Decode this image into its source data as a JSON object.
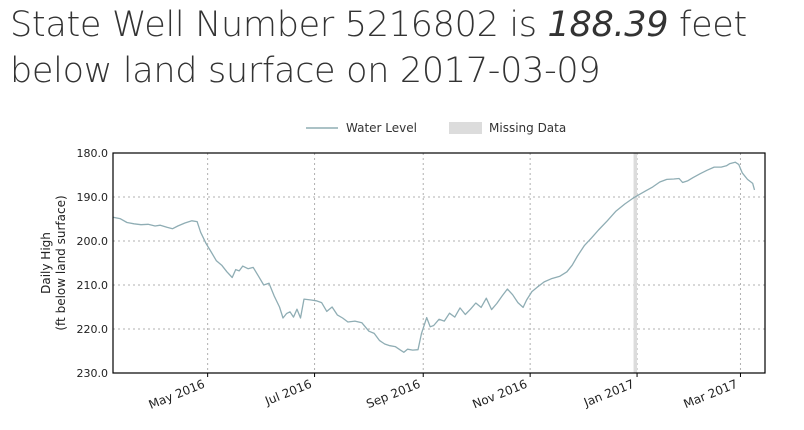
{
  "header": {
    "prefix": "State Well Number 5216802 is ",
    "value": "188.39",
    "suffix_line1": " feet",
    "line2": "below land surface on 2017-03-09"
  },
  "colors": {
    "series": "#8fadb4",
    "missing": "#dcdcdc",
    "grid": "#b0b0b0",
    "text": "#333333"
  },
  "chart_data": {
    "type": "line",
    "xlabel": "",
    "ylabel": "Daily High",
    "ylabel2": "(ft below land surface)",
    "ylim": [
      180,
      230
    ],
    "y_inverted": true,
    "y_ticks": [
      180,
      190,
      200,
      210,
      220,
      230
    ],
    "y_tick_labels": [
      "180.0",
      "190.0",
      "200.0",
      "210.0",
      "220.0",
      "230.0"
    ],
    "xlim": [
      "2016-03-08",
      "2017-03-15"
    ],
    "x_ticks": [
      "2016-05-01",
      "2016-07-01",
      "2016-09-01",
      "2016-11-01",
      "2017-01-01",
      "2017-03-01"
    ],
    "x_tick_labels": [
      "May 2016",
      "Jul 2016",
      "Sep 2016",
      "Nov 2016",
      "Jan 2017",
      "Mar 2017"
    ],
    "grid": true,
    "legend_position": "top-center",
    "legend": [
      {
        "label": "Water Level",
        "kind": "line"
      },
      {
        "label": "Missing Data",
        "kind": "box"
      }
    ],
    "missing_ranges": [
      [
        "2016-12-30",
        "2017-01-01"
      ]
    ],
    "series": [
      {
        "name": "Water Level",
        "points": [
          [
            "2016-03-08",
            194.6
          ],
          [
            "2016-03-12",
            194.9
          ],
          [
            "2016-03-16",
            195.8
          ],
          [
            "2016-03-20",
            196.1
          ],
          [
            "2016-03-24",
            196.3
          ],
          [
            "2016-03-28",
            196.2
          ],
          [
            "2016-04-01",
            196.6
          ],
          [
            "2016-04-04",
            196.4
          ],
          [
            "2016-04-08",
            196.9
          ],
          [
            "2016-04-11",
            197.2
          ],
          [
            "2016-04-14",
            196.6
          ],
          [
            "2016-04-18",
            195.9
          ],
          [
            "2016-04-22",
            195.4
          ],
          [
            "2016-04-25",
            195.6
          ],
          [
            "2016-04-27",
            198.0
          ],
          [
            "2016-04-30",
            200.5
          ],
          [
            "2016-05-03",
            202.5
          ],
          [
            "2016-05-06",
            204.5
          ],
          [
            "2016-05-09",
            205.5
          ],
          [
            "2016-05-12",
            207.0
          ],
          [
            "2016-05-15",
            208.3
          ],
          [
            "2016-05-17",
            206.5
          ],
          [
            "2016-05-19",
            206.8
          ],
          [
            "2016-05-21",
            205.7
          ],
          [
            "2016-05-24",
            206.3
          ],
          [
            "2016-05-27",
            206.0
          ],
          [
            "2016-05-30",
            208.0
          ],
          [
            "2016-06-02",
            210.0
          ],
          [
            "2016-06-05",
            209.6
          ],
          [
            "2016-06-08",
            212.5
          ],
          [
            "2016-06-11",
            215.0
          ],
          [
            "2016-06-13",
            217.5
          ],
          [
            "2016-06-15",
            216.5
          ],
          [
            "2016-06-17",
            216.1
          ],
          [
            "2016-06-19",
            217.3
          ],
          [
            "2016-06-21",
            215.5
          ],
          [
            "2016-06-23",
            217.5
          ],
          [
            "2016-06-25",
            213.2
          ],
          [
            "2016-06-29",
            213.4
          ],
          [
            "2016-07-02",
            213.6
          ],
          [
            "2016-07-05",
            214.0
          ],
          [
            "2016-07-08",
            216.0
          ],
          [
            "2016-07-11",
            215.0
          ],
          [
            "2016-07-14",
            216.8
          ],
          [
            "2016-07-17",
            217.5
          ],
          [
            "2016-07-20",
            218.4
          ],
          [
            "2016-07-24",
            218.2
          ],
          [
            "2016-07-28",
            218.6
          ],
          [
            "2016-08-01",
            220.5
          ],
          [
            "2016-08-04",
            221.0
          ],
          [
            "2016-08-07",
            222.6
          ],
          [
            "2016-08-10",
            223.4
          ],
          [
            "2016-08-13",
            223.8
          ],
          [
            "2016-08-16",
            224.0
          ],
          [
            "2016-08-19",
            224.8
          ],
          [
            "2016-08-21",
            225.3
          ],
          [
            "2016-08-23",
            224.6
          ],
          [
            "2016-08-26",
            224.8
          ],
          [
            "2016-08-29",
            224.7
          ],
          [
            "2016-08-31",
            221.0
          ],
          [
            "2016-09-03",
            217.4
          ],
          [
            "2016-09-05",
            219.5
          ],
          [
            "2016-09-07",
            219.2
          ],
          [
            "2016-09-10",
            217.8
          ],
          [
            "2016-09-13",
            218.2
          ],
          [
            "2016-09-16",
            216.4
          ],
          [
            "2016-09-19",
            217.3
          ],
          [
            "2016-09-22",
            215.2
          ],
          [
            "2016-09-25",
            216.7
          ],
          [
            "2016-09-28",
            215.5
          ],
          [
            "2016-10-01",
            214.1
          ],
          [
            "2016-10-04",
            215.1
          ],
          [
            "2016-10-07",
            213.0
          ],
          [
            "2016-10-10",
            215.6
          ],
          [
            "2016-10-13",
            214.2
          ],
          [
            "2016-10-16",
            212.5
          ],
          [
            "2016-10-19",
            210.9
          ],
          [
            "2016-10-22",
            212.2
          ],
          [
            "2016-10-25",
            214.0
          ],
          [
            "2016-10-28",
            215.1
          ],
          [
            "2016-10-30",
            213.4
          ],
          [
            "2016-11-02",
            211.5
          ],
          [
            "2016-11-05",
            210.5
          ],
          [
            "2016-11-09",
            209.3
          ],
          [
            "2016-11-13",
            208.6
          ],
          [
            "2016-11-18",
            208.0
          ],
          [
            "2016-11-22",
            207.0
          ],
          [
            "2016-11-25",
            205.5
          ],
          [
            "2016-11-28",
            203.4
          ],
          [
            "2016-12-02",
            201.0
          ],
          [
            "2016-12-06",
            199.3
          ],
          [
            "2016-12-10",
            197.5
          ],
          [
            "2016-12-15",
            195.4
          ],
          [
            "2016-12-20",
            193.2
          ],
          [
            "2016-12-25",
            191.6
          ],
          [
            "2016-12-30",
            190.2
          ],
          [
            "2017-01-02",
            189.5
          ],
          [
            "2017-01-06",
            188.6
          ],
          [
            "2017-01-10",
            187.7
          ],
          [
            "2017-01-14",
            186.6
          ],
          [
            "2017-01-18",
            186.0
          ],
          [
            "2017-01-22",
            185.9
          ],
          [
            "2017-01-25",
            185.8
          ],
          [
            "2017-01-27",
            186.7
          ],
          [
            "2017-01-30",
            186.3
          ],
          [
            "2017-02-02",
            185.6
          ],
          [
            "2017-02-06",
            184.7
          ],
          [
            "2017-02-10",
            183.9
          ],
          [
            "2017-02-14",
            183.2
          ],
          [
            "2017-02-18",
            183.2
          ],
          [
            "2017-02-21",
            182.9
          ],
          [
            "2017-02-23",
            182.4
          ],
          [
            "2017-02-26",
            182.1
          ],
          [
            "2017-02-28",
            182.6
          ],
          [
            "2017-03-02",
            184.5
          ],
          [
            "2017-03-05",
            186.0
          ],
          [
            "2017-03-08",
            186.9
          ],
          [
            "2017-03-09",
            188.39
          ]
        ]
      }
    ]
  }
}
